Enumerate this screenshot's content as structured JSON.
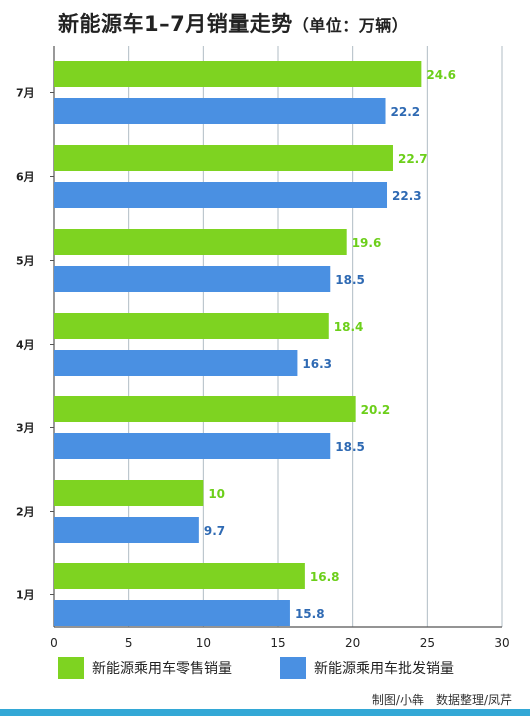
{
  "chart_data": {
    "type": "bar",
    "orientation": "horizontal",
    "title": "新能源车1–7月销量走势",
    "unit_note": "（单位：万辆）",
    "categories": [
      "7月",
      "6月",
      "5月",
      "4月",
      "3月",
      "2月",
      "1月"
    ],
    "series": [
      {
        "name": "新能源乘用车零售销量",
        "color": "#7ed321",
        "values": [
          24.6,
          22.7,
          19.6,
          18.4,
          20.2,
          10,
          16.8
        ]
      },
      {
        "name": "新能源乘用车批发销量",
        "color": "#4a90e2",
        "values": [
          22.2,
          22.3,
          18.5,
          16.3,
          18.5,
          9.7,
          15.8
        ]
      }
    ],
    "value_labels": [
      [
        "24.6",
        "22.2"
      ],
      [
        "22.7",
        "22.3"
      ],
      [
        "19.6",
        "18.5"
      ],
      [
        "18.4",
        "16.3"
      ],
      [
        "20.2",
        "18.5"
      ],
      [
        "10",
        "9.7"
      ],
      [
        "16.8",
        "15.8"
      ]
    ],
    "x_ticks": [
      "0",
      "5",
      "10",
      "15",
      "20",
      "25",
      "30"
    ],
    "xlim": [
      0,
      30
    ],
    "grid": true,
    "legend_position": "bottom",
    "background_color": "#ffffff",
    "grid_color": "#b0bcc4"
  },
  "footer": {
    "credit": "制图/小犇　数据整理/凤芹"
  }
}
